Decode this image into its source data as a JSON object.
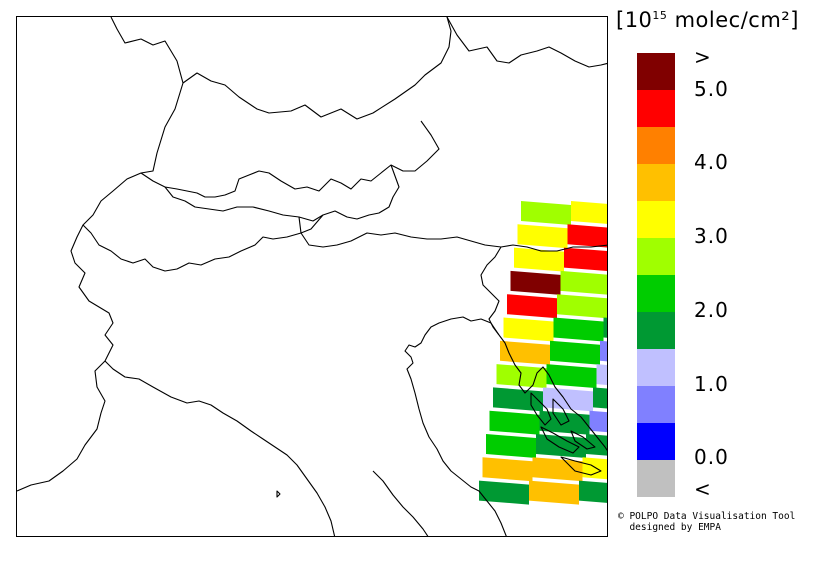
{
  "legend": {
    "units_prefix": "[10",
    "units_exponent": "15",
    "units_suffix": " molec/cm²]",
    "colors": [
      "#800000",
      "#ff0000",
      "#ff8000",
      "#ffc000",
      "#ffff00",
      "#a0ff00",
      "#00cc00",
      "#009933",
      "#c0c0ff",
      "#8080ff",
      "#0000ff",
      "#c0c0c0"
    ],
    "ticks": [
      ">",
      "5.0",
      "4.0",
      "3.0",
      "2.0",
      "1.0",
      "0.0",
      "<"
    ]
  },
  "credit_line1": "© POLPO Data Visualisation Tool",
  "credit_line2": "  designed by EMPA",
  "swath": {
    "rows": [
      [
        "#a0ff00",
        "#ffff00"
      ],
      [
        "#ffff00",
        "#ff0000"
      ],
      [
        "#ffff00",
        "#ff0000"
      ],
      [
        "#800000",
        "#a0ff00",
        "#ffff00"
      ],
      [
        "#ff0000",
        "#a0ff00",
        "#00cc00"
      ],
      [
        "#ffff00",
        "#00cc00",
        "#009933"
      ],
      [
        "#ffc000",
        "#00cc00",
        "#8080ff"
      ],
      [
        "#a0ff00",
        "#00cc00",
        "#c0c0ff"
      ],
      [
        "#009933",
        "#c0c0ff",
        "#009933"
      ],
      [
        "#00cc00",
        "#009933",
        "#8080ff"
      ],
      [
        "#00cc00",
        "#009933",
        "#009933"
      ],
      [
        "#ffc000",
        "#ffc000",
        "#ffff00"
      ],
      [
        "#009933",
        "#ffc000",
        "#009933"
      ]
    ]
  }
}
